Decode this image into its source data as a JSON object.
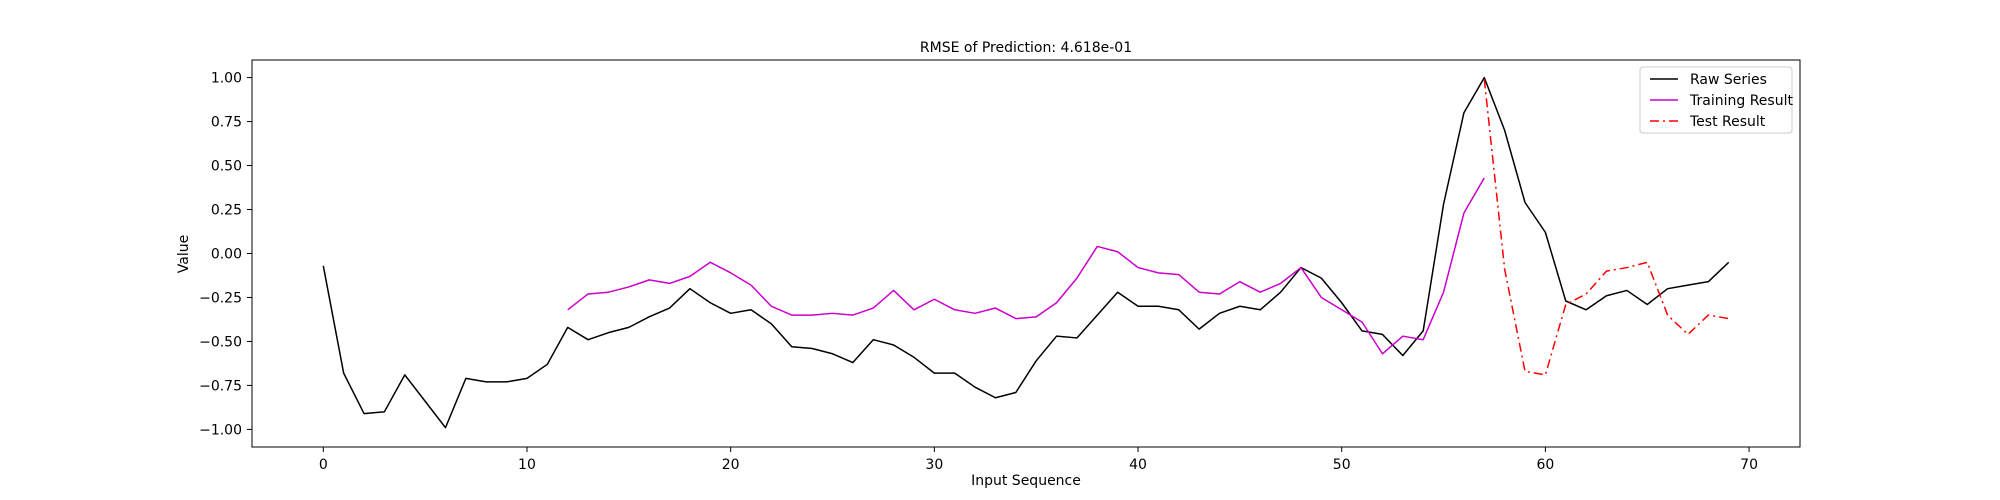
{
  "chart_data": {
    "type": "line",
    "title": "RMSE of Prediction: 4.618e-01",
    "xlabel": "Input Sequence",
    "ylabel": "Value",
    "xlim": [
      -3.5,
      72.5
    ],
    "ylim": [
      -1.1,
      1.1
    ],
    "xticks": [
      0,
      10,
      20,
      30,
      40,
      50,
      60,
      70
    ],
    "yticks": [
      -1.0,
      -0.75,
      -0.5,
      -0.25,
      0.0,
      0.25,
      0.5,
      0.75,
      1.0
    ],
    "ytick_labels": [
      "−1.00",
      "−0.75",
      "−0.50",
      "−0.25",
      "0.00",
      "0.25",
      "0.50",
      "0.75",
      "1.00"
    ],
    "legend_position": "top-right",
    "grid": false,
    "series": [
      {
        "name": "Raw Series",
        "color": "#000000",
        "style": "solid",
        "x_start": 0,
        "values": [
          -0.07,
          -0.68,
          -0.91,
          -0.9,
          -0.69,
          -0.84,
          -0.99,
          -0.71,
          -0.73,
          -0.73,
          -0.71,
          -0.63,
          -0.42,
          -0.49,
          -0.45,
          -0.42,
          -0.36,
          -0.31,
          -0.2,
          -0.28,
          -0.34,
          -0.32,
          -0.4,
          -0.53,
          -0.54,
          -0.57,
          -0.62,
          -0.49,
          -0.52,
          -0.59,
          -0.68,
          -0.68,
          -0.76,
          -0.82,
          -0.79,
          -0.61,
          -0.47,
          -0.48,
          -0.35,
          -0.22,
          -0.3,
          -0.3,
          -0.32,
          -0.43,
          -0.34,
          -0.3,
          -0.32,
          -0.22,
          -0.08,
          -0.14,
          -0.28,
          -0.44,
          -0.46,
          -0.58,
          -0.44,
          0.28,
          0.8,
          1.0,
          0.7,
          0.29,
          0.12,
          -0.27,
          -0.32,
          -0.24,
          -0.21,
          -0.29,
          -0.2,
          -0.18,
          -0.16,
          -0.05
        ]
      },
      {
        "name": "Training Result",
        "color": "#cc00cc",
        "style": "solid",
        "x_start": 12,
        "values": [
          -0.32,
          -0.23,
          -0.22,
          -0.19,
          -0.15,
          -0.17,
          -0.13,
          -0.05,
          -0.11,
          -0.18,
          -0.3,
          -0.35,
          -0.35,
          -0.34,
          -0.35,
          -0.31,
          -0.21,
          -0.32,
          -0.26,
          -0.32,
          -0.34,
          -0.31,
          -0.37,
          -0.36,
          -0.28,
          -0.14,
          0.04,
          0.01,
          -0.08,
          -0.11,
          -0.12,
          -0.22,
          -0.23,
          -0.16,
          -0.22,
          -0.17,
          -0.08,
          -0.25,
          -0.32,
          -0.39,
          -0.57,
          -0.47,
          -0.49,
          -0.22,
          0.23,
          0.43
        ]
      },
      {
        "name": "Test Result",
        "color": "#ff0000",
        "style": "dashdot",
        "x_start": 57,
        "values": [
          0.99,
          -0.09,
          -0.67,
          -0.69,
          -0.29,
          -0.23,
          -0.1,
          -0.08,
          -0.05,
          -0.35,
          -0.46,
          -0.35,
          -0.37
        ]
      }
    ]
  }
}
